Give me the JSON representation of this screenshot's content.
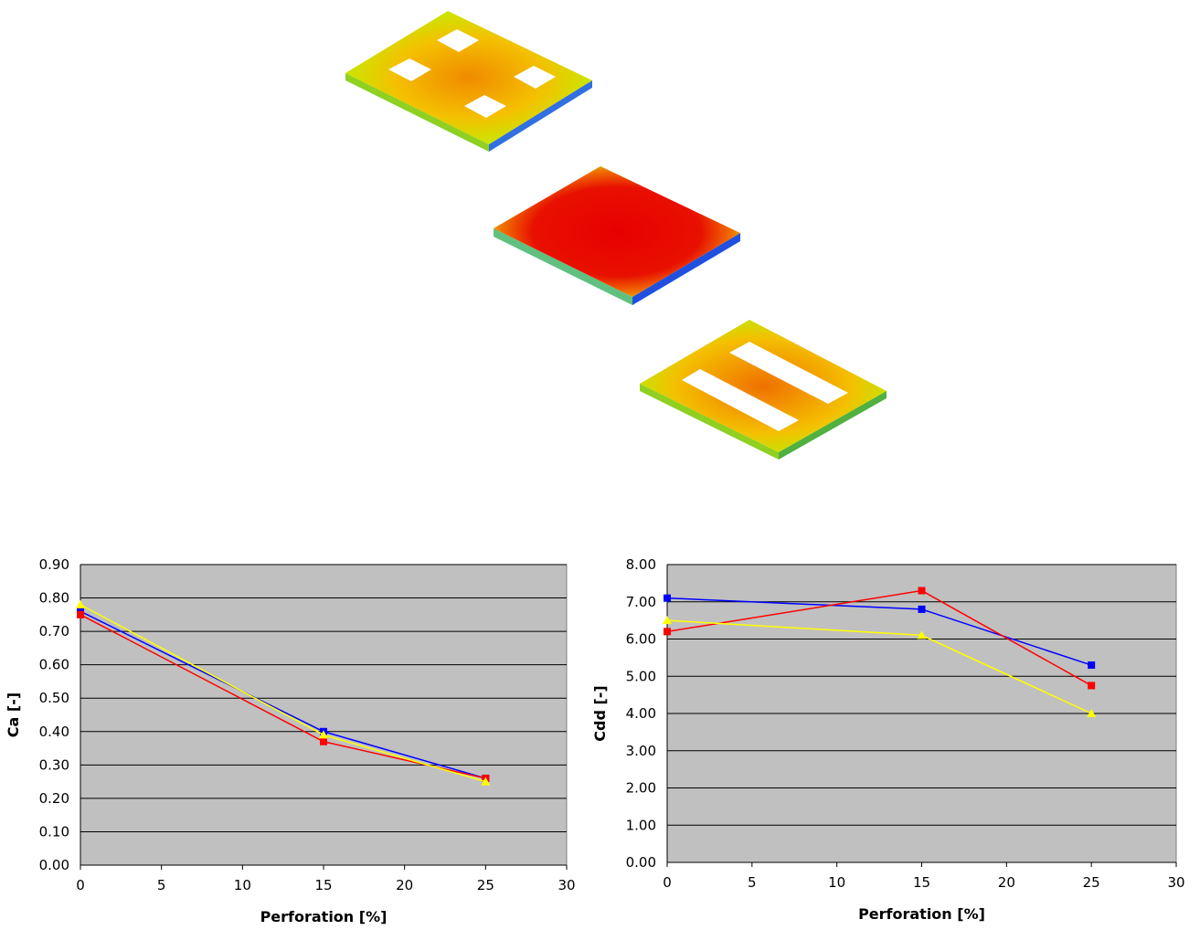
{
  "chart_data": [
    {
      "type": "line",
      "x_label": "Perforation [%]",
      "y_label": "Ca [-]",
      "xlim": [
        0,
        30
      ],
      "xticks": [
        0,
        5,
        10,
        15,
        20,
        25,
        30
      ],
      "ylim": [
        0,
        0.9
      ],
      "yticks": [
        {
          "value": 0,
          "label": "0.00"
        },
        {
          "value": 0.1,
          "label": "0.10"
        },
        {
          "value": 0.2,
          "label": "0.20"
        },
        {
          "value": 0.3,
          "label": "0.30"
        },
        {
          "value": 0.4,
          "label": "0.40"
        },
        {
          "value": 0.5,
          "label": "0.50"
        },
        {
          "value": 0.6,
          "label": "0.60"
        },
        {
          "value": 0.7,
          "label": "0.70"
        },
        {
          "value": 0.8,
          "label": "0.80"
        },
        {
          "value": 0.9,
          "label": "0.90"
        }
      ],
      "grid": true,
      "background": "#c0c0c0",
      "x": [
        0,
        15,
        25
      ],
      "series": [
        {
          "color": "#0000ff",
          "marker": "square",
          "values": [
            0.76,
            0.4,
            0.26
          ]
        },
        {
          "color": "#ff0000",
          "marker": "square",
          "values": [
            0.75,
            0.37,
            0.26
          ]
        },
        {
          "color": "#ffff00",
          "marker": "triangle",
          "values": [
            0.78,
            0.39,
            0.25
          ]
        }
      ]
    },
    {
      "type": "line",
      "x_label": "Perforation [%]",
      "y_label": "Cdd [-]",
      "xlim": [
        0,
        30
      ],
      "xticks": [
        0,
        5,
        10,
        15,
        20,
        25,
        30
      ],
      "ylim": [
        0,
        8
      ],
      "yticks": [
        {
          "value": 0,
          "label": "0.00"
        },
        {
          "value": 1,
          "label": "1.00"
        },
        {
          "value": 2,
          "label": "2.00"
        },
        {
          "value": 3,
          "label": "3.00"
        },
        {
          "value": 4,
          "label": "4.00"
        },
        {
          "value": 5,
          "label": "5.00"
        },
        {
          "value": 6,
          "label": "6.00"
        },
        {
          "value": 7,
          "label": "7.00"
        },
        {
          "value": 8,
          "label": "8.00"
        }
      ],
      "grid": true,
      "background": "#c0c0c0",
      "x": [
        0,
        15,
        25
      ],
      "series": [
        {
          "color": "#0000ff",
          "marker": "square",
          "values": [
            7.1,
            6.8,
            5.3
          ]
        },
        {
          "color": "#ff0000",
          "marker": "square",
          "values": [
            6.2,
            7.3,
            4.75
          ]
        },
        {
          "color": "#ffff00",
          "marker": "triangle",
          "values": [
            6.5,
            6.1,
            4.0
          ]
        }
      ]
    }
  ]
}
